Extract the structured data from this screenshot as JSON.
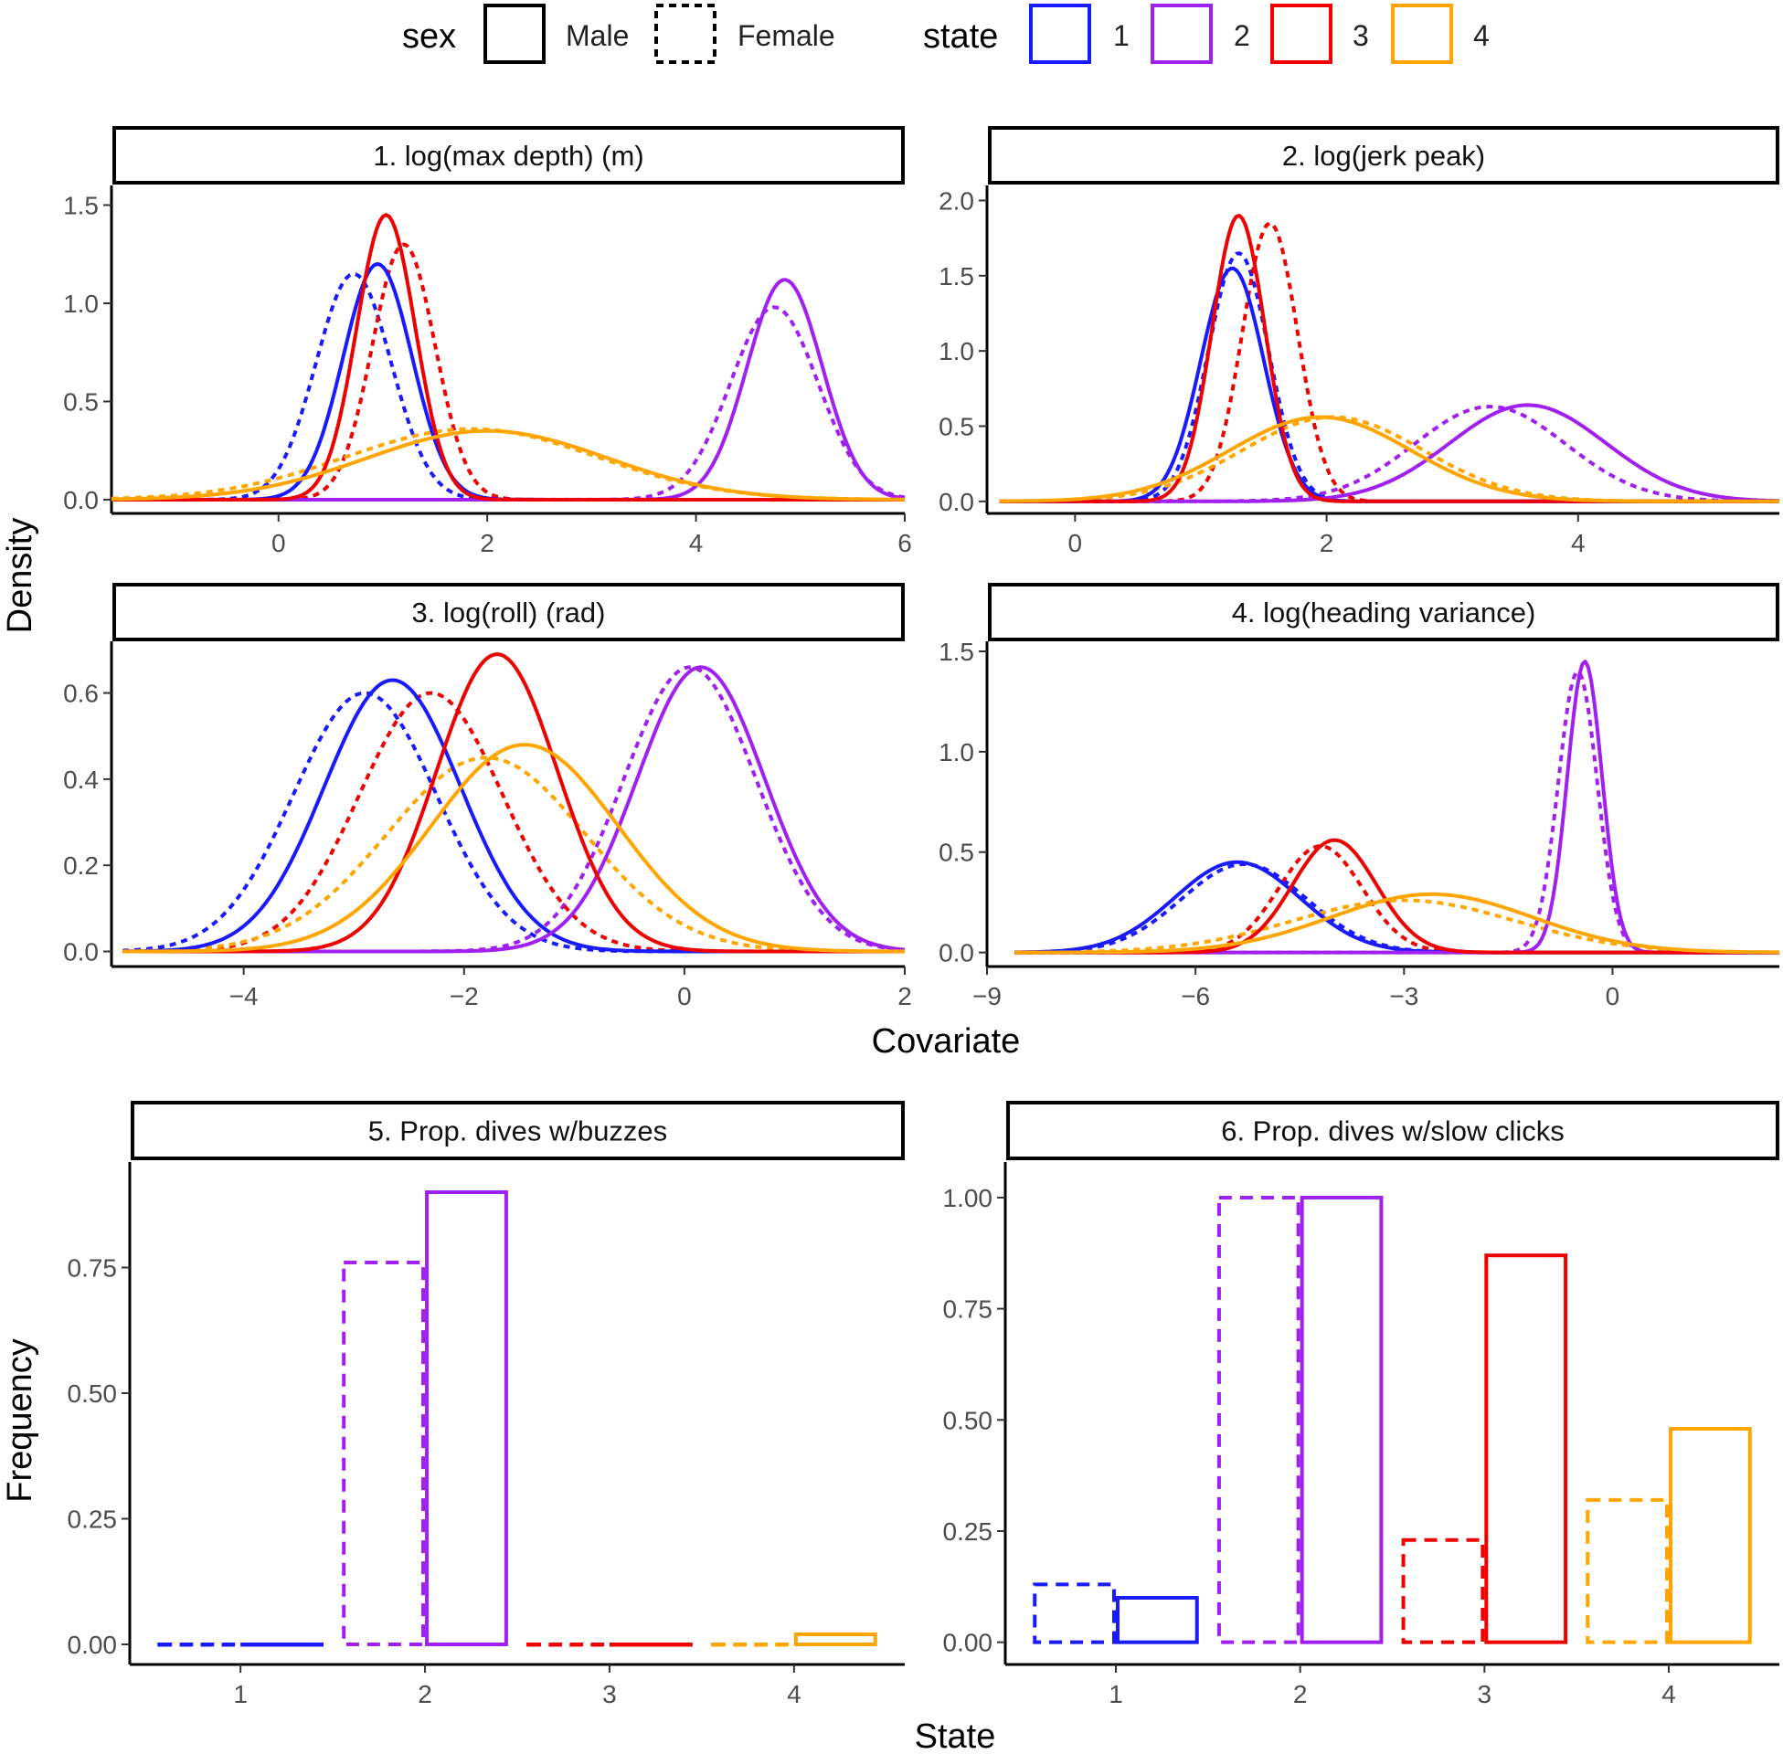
{
  "legend": {
    "sex_title": "sex",
    "sex_items": [
      {
        "label": "Male",
        "linetype": "solid"
      },
      {
        "label": "Female",
        "linetype": "dashed"
      }
    ],
    "state_title": "state",
    "state_items": [
      {
        "label": "1",
        "color": "#1a1aff"
      },
      {
        "label": "2",
        "color": "#a020f0"
      },
      {
        "label": "3",
        "color": "#ee0000"
      },
      {
        "label": "4",
        "color": "#ffa500"
      }
    ]
  },
  "axis_titles": {
    "density_ylabel": "Density",
    "covariate_xlabel": "Covariate",
    "frequency_ylabel": "Frequency",
    "state_xlabel": "State"
  },
  "chart_data": [
    {
      "type": "line",
      "title": "1. log(max depth) (m)",
      "xlabel": "Covariate",
      "ylabel": "Density",
      "xlim": [
        -1.6,
        6.0
      ],
      "ylim": [
        -0.07,
        1.6
      ],
      "xticks": [
        0,
        2,
        4,
        6
      ],
      "yticks": [
        0.0,
        0.5,
        1.0,
        1.5
      ],
      "ytick_labels": [
        "0.0",
        "0.5",
        "1.0",
        "1.5"
      ],
      "series": [
        {
          "state": "1",
          "sex": "Male",
          "kind": "normal",
          "mean": 0.95,
          "sd": 0.33,
          "peak": 1.2,
          "range": [
            -1.6,
            6
          ]
        },
        {
          "state": "1",
          "sex": "Female",
          "kind": "normal",
          "mean": 0.72,
          "sd": 0.36,
          "peak": 1.15,
          "range": [
            -1.6,
            6
          ]
        },
        {
          "state": "2",
          "sex": "Male",
          "kind": "normal",
          "mean": 4.85,
          "sd": 0.36,
          "peak": 1.12,
          "range": [
            -1.6,
            6
          ]
        },
        {
          "state": "2",
          "sex": "Female",
          "kind": "normal",
          "mean": 4.75,
          "sd": 0.42,
          "peak": 0.98,
          "range": [
            -1.6,
            6
          ]
        },
        {
          "state": "3",
          "sex": "Male",
          "kind": "normal",
          "mean": 1.03,
          "sd": 0.28,
          "peak": 1.45,
          "range": [
            -1.6,
            6
          ]
        },
        {
          "state": "3",
          "sex": "Female",
          "kind": "normal",
          "mean": 1.2,
          "sd": 0.3,
          "peak": 1.3,
          "range": [
            -1.6,
            6
          ]
        },
        {
          "state": "4",
          "sex": "Male",
          "kind": "normal",
          "mean": 2.0,
          "sd": 1.15,
          "peak": 0.35,
          "range": [
            -1.6,
            6
          ]
        },
        {
          "state": "4",
          "sex": "Female",
          "kind": "normal",
          "mean": 1.85,
          "sd": 1.2,
          "peak": 0.36,
          "range": [
            -1.6,
            6
          ]
        }
      ]
    },
    {
      "type": "line",
      "title": "2. log(jerk peak)",
      "xlabel": "Covariate",
      "ylabel": "Density",
      "xlim": [
        -0.7,
        5.6
      ],
      "ylim": [
        -0.08,
        2.1
      ],
      "xticks": [
        0,
        2,
        4
      ],
      "yticks": [
        0.0,
        0.5,
        1.0,
        1.5,
        2.0
      ],
      "ytick_labels": [
        "0.0",
        "0.5",
        "1.0",
        "1.5",
        "2.0"
      ],
      "series": [
        {
          "state": "1",
          "sex": "Male",
          "kind": "normal",
          "mean": 1.25,
          "sd": 0.25,
          "peak": 1.55,
          "range": [
            -0.6,
            5.6
          ]
        },
        {
          "state": "1",
          "sex": "Female",
          "kind": "normal",
          "mean": 1.3,
          "sd": 0.24,
          "peak": 1.65,
          "range": [
            -0.6,
            5.6
          ]
        },
        {
          "state": "2",
          "sex": "Male",
          "kind": "normal",
          "mean": 3.6,
          "sd": 0.62,
          "peak": 0.64,
          "range": [
            -0.6,
            5.6
          ]
        },
        {
          "state": "2",
          "sex": "Female",
          "kind": "normal",
          "mean": 3.3,
          "sd": 0.6,
          "peak": 0.63,
          "range": [
            -0.6,
            5.6
          ]
        },
        {
          "state": "3",
          "sex": "Male",
          "kind": "normal",
          "mean": 1.3,
          "sd": 0.21,
          "peak": 1.9,
          "range": [
            -0.6,
            5.6
          ]
        },
        {
          "state": "3",
          "sex": "Female",
          "kind": "normal",
          "mean": 1.55,
          "sd": 0.22,
          "peak": 1.85,
          "range": [
            -0.6,
            5.6
          ]
        },
        {
          "state": "4",
          "sex": "Male",
          "kind": "normal",
          "mean": 1.95,
          "sd": 0.72,
          "peak": 0.56,
          "range": [
            -0.6,
            5.6
          ]
        },
        {
          "state": "4",
          "sex": "Female",
          "kind": "normal",
          "mean": 2.05,
          "sd": 0.72,
          "peak": 0.56,
          "range": [
            -0.6,
            5.6
          ]
        }
      ]
    },
    {
      "type": "line",
      "title": "3. log(roll) (rad)",
      "xlabel": "Covariate",
      "ylabel": "Density",
      "xlim": [
        -5.2,
        2.0
      ],
      "ylim": [
        -0.035,
        0.72
      ],
      "xticks": [
        -4,
        -2,
        0,
        2
      ],
      "yticks": [
        0.0,
        0.2,
        0.4,
        0.6
      ],
      "xtick_labels": [
        "−4",
        "−2",
        "0",
        "2"
      ],
      "ytick_labels": [
        "0.0",
        "0.2",
        "0.4",
        "0.6"
      ],
      "series": [
        {
          "state": "1",
          "sex": "Male",
          "kind": "normal",
          "mean": -2.65,
          "sd": 0.62,
          "peak": 0.63,
          "range": [
            -5.1,
            2
          ]
        },
        {
          "state": "1",
          "sex": "Female",
          "kind": "normal",
          "mean": -2.9,
          "sd": 0.65,
          "peak": 0.6,
          "range": [
            -5.1,
            2
          ]
        },
        {
          "state": "2",
          "sex": "Male",
          "kind": "normal",
          "mean": 0.15,
          "sd": 0.58,
          "peak": 0.66,
          "range": [
            -5.1,
            2
          ]
        },
        {
          "state": "2",
          "sex": "Female",
          "kind": "normal",
          "mean": 0.05,
          "sd": 0.6,
          "peak": 0.66,
          "range": [
            -5.1,
            2
          ]
        },
        {
          "state": "3",
          "sex": "Male",
          "kind": "normal",
          "mean": -1.7,
          "sd": 0.55,
          "peak": 0.69,
          "range": [
            -5.1,
            2
          ]
        },
        {
          "state": "3",
          "sex": "Female",
          "kind": "normal",
          "mean": -2.3,
          "sd": 0.65,
          "peak": 0.6,
          "range": [
            -5.1,
            2
          ]
        },
        {
          "state": "4",
          "sex": "Male",
          "kind": "normal",
          "mean": -1.45,
          "sd": 0.85,
          "peak": 0.48,
          "range": [
            -5.1,
            2
          ]
        },
        {
          "state": "4",
          "sex": "Female",
          "kind": "normal",
          "mean": -1.8,
          "sd": 0.9,
          "peak": 0.45,
          "range": [
            -5.1,
            2
          ]
        }
      ]
    },
    {
      "type": "line",
      "title": "4. log(heading variance)",
      "xlabel": "Covariate",
      "ylabel": "Density",
      "xlim": [
        -9.0,
        2.4
      ],
      "ylim": [
        -0.07,
        1.55
      ],
      "xticks": [
        -9,
        -6,
        -3,
        0
      ],
      "yticks": [
        0.0,
        0.5,
        1.0,
        1.5
      ],
      "xtick_labels": [
        "−9",
        "−6",
        "−3",
        "0"
      ],
      "ytick_labels": [
        "0.0",
        "0.5",
        "1.0",
        "1.5"
      ],
      "series": [
        {
          "state": "1",
          "sex": "Male",
          "kind": "normal",
          "mean": -5.4,
          "sd": 0.9,
          "peak": 0.45,
          "range": [
            -8.6,
            2.4
          ]
        },
        {
          "state": "1",
          "sex": "Female",
          "kind": "normal",
          "mean": -5.3,
          "sd": 0.9,
          "peak": 0.44,
          "range": [
            -8.6,
            2.4
          ]
        },
        {
          "state": "2",
          "sex": "Male",
          "kind": "normal",
          "mean": -0.4,
          "sd": 0.25,
          "peak": 1.45,
          "range": [
            -8.6,
            2.4
          ]
        },
        {
          "state": "2",
          "sex": "Female",
          "kind": "normal",
          "mean": -0.5,
          "sd": 0.28,
          "peak": 1.4,
          "range": [
            -8.6,
            2.4
          ]
        },
        {
          "state": "3",
          "sex": "Male",
          "kind": "normal",
          "mean": -4.0,
          "sd": 0.6,
          "peak": 0.56,
          "range": [
            -8.6,
            2.4
          ]
        },
        {
          "state": "3",
          "sex": "Female",
          "kind": "normal",
          "mean": -4.2,
          "sd": 0.6,
          "peak": 0.53,
          "range": [
            -8.6,
            2.4
          ]
        },
        {
          "state": "4",
          "sex": "Male",
          "kind": "normal",
          "mean": -2.6,
          "sd": 1.45,
          "peak": 0.29,
          "range": [
            -8.6,
            2.4
          ]
        },
        {
          "state": "4",
          "sex": "Female",
          "kind": "normal",
          "mean": -3.0,
          "sd": 1.6,
          "peak": 0.26,
          "range": [
            -8.6,
            2.4
          ]
        }
      ]
    },
    {
      "type": "bar",
      "title": "5. Prop. dives w/buzzes",
      "xlabel": "State",
      "ylabel": "Frequency",
      "categories": [
        "1",
        "2",
        "3",
        "4"
      ],
      "ylim": [
        -0.04,
        0.96
      ],
      "yticks": [
        0.0,
        0.25,
        0.5,
        0.75
      ],
      "ytick_labels": [
        "0.00",
        "0.25",
        "0.50",
        "0.75"
      ],
      "series": [
        {
          "name": "Female",
          "values": [
            0.0,
            0.76,
            0.0,
            0.0
          ]
        },
        {
          "name": "Male",
          "values": [
            0.0,
            0.9,
            0.0,
            0.02
          ]
        }
      ]
    },
    {
      "type": "bar",
      "title": "6. Prop. dives w/slow clicks",
      "xlabel": "State",
      "ylabel": "Frequency",
      "categories": [
        "1",
        "2",
        "3",
        "4"
      ],
      "ylim": [
        -0.05,
        1.08
      ],
      "yticks": [
        0.0,
        0.25,
        0.5,
        0.75,
        1.0
      ],
      "ytick_labels": [
        "0.00",
        "0.25",
        "0.50",
        "0.75",
        "1.00"
      ],
      "series": [
        {
          "name": "Female",
          "values": [
            0.13,
            1.0,
            0.23,
            0.32
          ]
        },
        {
          "name": "Male",
          "values": [
            0.1,
            1.0,
            0.87,
            0.48
          ]
        }
      ]
    }
  ]
}
